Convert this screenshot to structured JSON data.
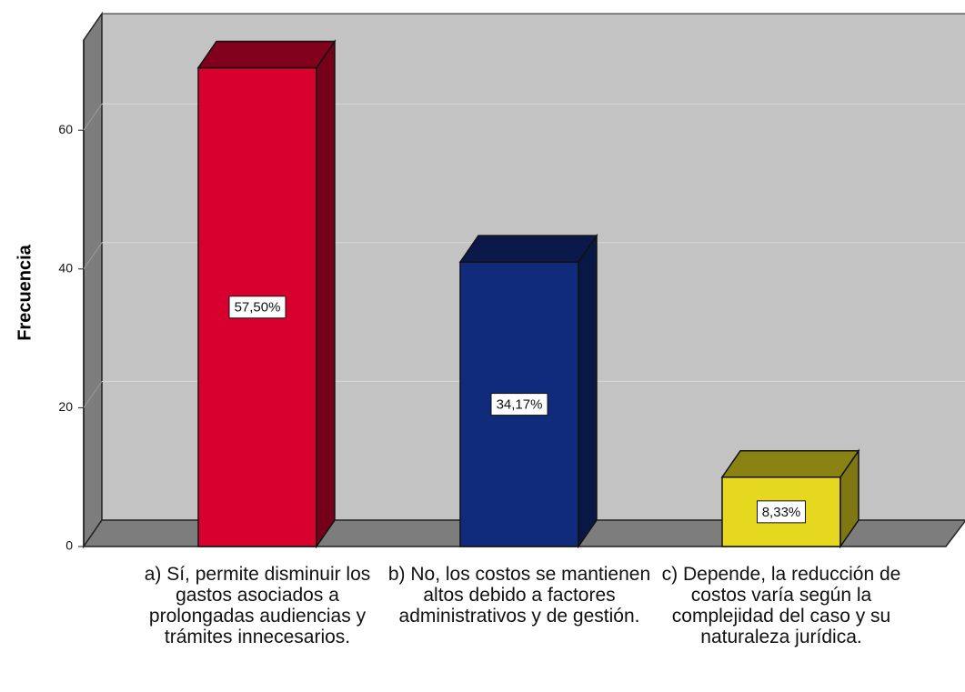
{
  "chart_data": {
    "type": "bar3d",
    "y_axis_label": "Frecuencia",
    "categories": [
      "a) Sí, permite disminuir los gastos asociados a prolongadas audiencias y trámites innecesarios.",
      "b) No, los costos se mantienen altos debido a factores administrativos y de gestión.",
      "c) Depende, la reducción de costos varía según la complejidad del caso y su naturaleza jurídica."
    ],
    "values": [
      69,
      41,
      10
    ],
    "percent_values": [
      57.5,
      34.17,
      8.33
    ],
    "percent_labels": [
      "57,50%",
      "34,17%",
      "8,33%"
    ],
    "colors": [
      "#d7002e",
      "#102a7c",
      "#e6d81e"
    ],
    "ylim": [
      0,
      73
    ],
    "yticks": [
      0,
      20,
      40,
      60
    ],
    "grid": true
  }
}
